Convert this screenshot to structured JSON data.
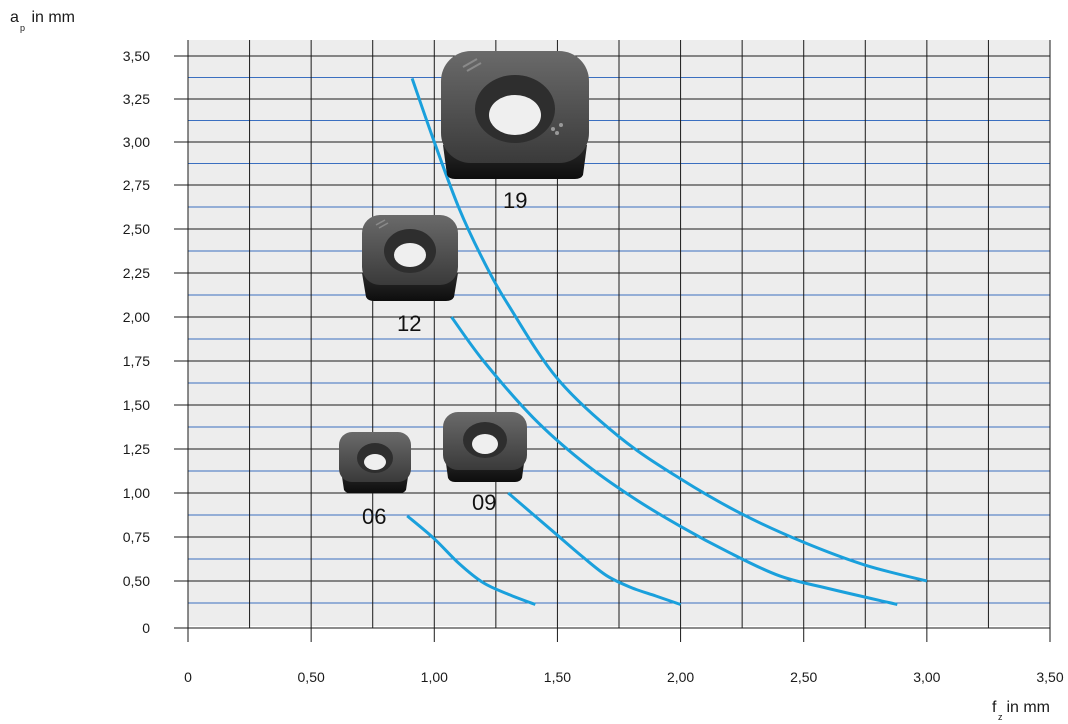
{
  "chart_data": {
    "type": "line",
    "y_axis_title": {
      "main": "a",
      "sub": "p",
      "unit": " in mm"
    },
    "x_axis_title": {
      "main": "f",
      "sub": "z",
      "unit": " in mm"
    },
    "xlim": [
      0,
      3.5
    ],
    "ylim": [
      0,
      3.5
    ],
    "x_ticks": [
      {
        "v": 0,
        "label": "0"
      },
      {
        "v": 0.5,
        "label": "0,50"
      },
      {
        "v": 1.0,
        "label": "1,00"
      },
      {
        "v": 1.5,
        "label": "1,50"
      },
      {
        "v": 2.0,
        "label": "2,00"
      },
      {
        "v": 2.5,
        "label": "2,50"
      },
      {
        "v": 3.0,
        "label": "3,00"
      },
      {
        "v": 3.5,
        "label": "3,50"
      }
    ],
    "y_ticks": [
      {
        "v": 0,
        "label": "0"
      },
      {
        "v": 0.5,
        "label": "0,50"
      },
      {
        "v": 0.75,
        "label": "0,75"
      },
      {
        "v": 1.0,
        "label": "1,00"
      },
      {
        "v": 1.25,
        "label": "1,25"
      },
      {
        "v": 1.5,
        "label": "1,50"
      },
      {
        "v": 1.75,
        "label": "1,75"
      },
      {
        "v": 2.0,
        "label": "2,00"
      },
      {
        "v": 2.25,
        "label": "2,25"
      },
      {
        "v": 2.5,
        "label": "2,50"
      },
      {
        "v": 2.75,
        "label": "2,75"
      },
      {
        "v": 3.0,
        "label": "3,00"
      },
      {
        "v": 3.25,
        "label": "3,25"
      },
      {
        "v": 3.5,
        "label": "3,50"
      }
    ],
    "grid": true,
    "series_color": "#1aa0dc",
    "grid_colors": {
      "major": "#1a1a1a",
      "minor_blue": "#3a6fc0",
      "background": "#ededed"
    },
    "series": [
      {
        "name": "06",
        "x": [
          0.89,
          1.0,
          1.1,
          1.2,
          1.3,
          1.41
        ],
        "y": [
          0.87,
          0.74,
          0.6,
          0.48,
          0.36,
          0.25
        ]
      },
      {
        "name": "09",
        "x": [
          1.3,
          1.4,
          1.5,
          1.6,
          1.7,
          1.8,
          1.9,
          2.0
        ],
        "y": [
          1.0,
          0.88,
          0.76,
          0.64,
          0.53,
          0.43,
          0.34,
          0.25
        ]
      },
      {
        "name": "12",
        "x": [
          1.07,
          1.2,
          1.4,
          1.6,
          1.8,
          2.0,
          2.2,
          2.4,
          2.6,
          2.88
        ],
        "y": [
          2.0,
          1.75,
          1.43,
          1.18,
          0.98,
          0.81,
          0.66,
          0.53,
          0.42,
          0.25
        ]
      },
      {
        "name": "19",
        "x": [
          0.91,
          1.0,
          1.1,
          1.2,
          1.3,
          1.5,
          1.75,
          2.0,
          2.25,
          2.5,
          2.75,
          3.0
        ],
        "y": [
          3.37,
          3.0,
          2.62,
          2.32,
          2.07,
          1.65,
          1.32,
          1.08,
          0.88,
          0.72,
          0.59,
          0.5
        ]
      }
    ],
    "annotations": [
      {
        "label": "19",
        "insert_icon": "large-square-insert-icon",
        "x": 1.3,
        "y": 3.15
      },
      {
        "label": "12",
        "insert_icon": "medium-square-insert-icon",
        "x": 0.78,
        "y": 2.35
      },
      {
        "label": "09",
        "insert_icon": "small-square-insert-icon",
        "x": 1.22,
        "y": 1.27
      },
      {
        "label": "06",
        "insert_icon": "tiny-square-insert-icon",
        "x": 0.77,
        "y": 1.2
      }
    ]
  }
}
